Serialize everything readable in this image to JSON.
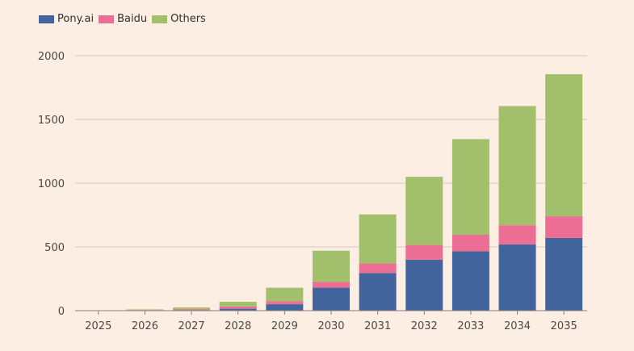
{
  "chart_data": {
    "type": "bar",
    "stacked": true,
    "title": "",
    "xlabel": "",
    "ylabel": "",
    "ylim": [
      0,
      2000
    ],
    "yticks": [
      0,
      500,
      1000,
      1500,
      2000
    ],
    "grid": true,
    "legend_position": "top-left",
    "categories": [
      "2025",
      "2026",
      "2027",
      "2028",
      "2029",
      "2030",
      "2031",
      "2032",
      "2033",
      "2034",
      "2035"
    ],
    "series": [
      {
        "name": "Pony.ai",
        "color": "#40649b",
        "values": [
          1,
          2,
          5,
          15,
          50,
          180,
          295,
          400,
          465,
          520,
          570
        ]
      },
      {
        "name": "Baidu",
        "color": "#ec6e94",
        "values": [
          1,
          3,
          7,
          18,
          25,
          45,
          75,
          115,
          130,
          150,
          170
        ]
      },
      {
        "name": "Others",
        "color": "#a2c06b",
        "values": [
          1,
          5,
          13,
          37,
          105,
          245,
          385,
          535,
          750,
          935,
          1115
        ]
      }
    ]
  }
}
